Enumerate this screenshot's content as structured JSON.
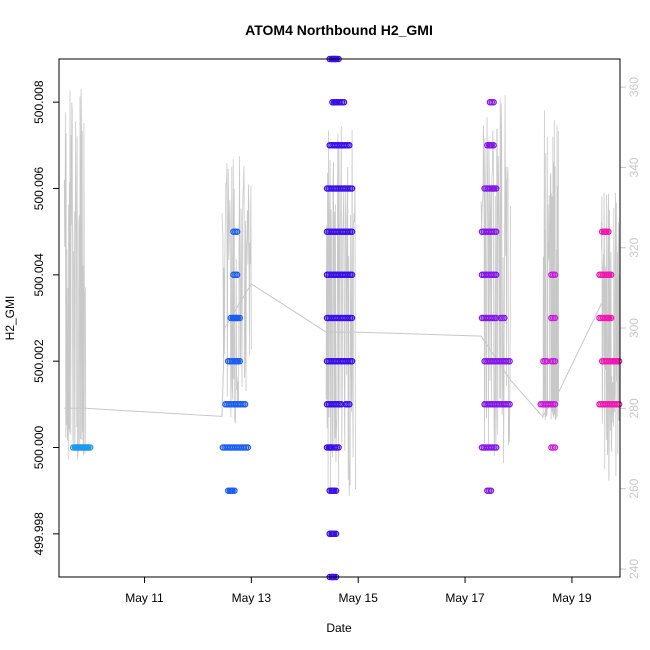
{
  "chart_data": {
    "type": "scatter",
    "title": "ATOM4 Northbound H2_GMI",
    "xlabel": "Date",
    "ylabel": "H2_GMI",
    "x_range_days": [
      9.4,
      19.9
    ],
    "ylim": [
      499.997,
      500.009
    ],
    "y2lim": [
      238,
      367
    ],
    "x_ticks": [
      {
        "day": 11,
        "label": "May 11"
      },
      {
        "day": 13,
        "label": "May 13"
      },
      {
        "day": 15,
        "label": "May 15"
      },
      {
        "day": 17,
        "label": "May 17"
      },
      {
        "day": 19,
        "label": "May 19"
      }
    ],
    "y_ticks": [
      {
        "value": 499.998,
        "label": "499.998"
      },
      {
        "value": 500.0,
        "label": "500.000"
      },
      {
        "value": 500.002,
        "label": "500.002"
      },
      {
        "value": 500.004,
        "label": "500.004"
      },
      {
        "value": 500.006,
        "label": "500.006"
      },
      {
        "value": 500.008,
        "label": "500.008"
      }
    ],
    "y2_ticks": [
      {
        "value": 240,
        "label": "240"
      },
      {
        "value": 260,
        "label": "260"
      },
      {
        "value": 280,
        "label": "280"
      },
      {
        "value": 300,
        "label": "300"
      },
      {
        "value": 320,
        "label": "320"
      },
      {
        "value": 340,
        "label": "340"
      },
      {
        "value": 360,
        "label": "360"
      }
    ],
    "colors": {
      "frame": "#000000",
      "secondary_axis": "#c8c8c8",
      "secondary_line": "#c8c8c8"
    },
    "series": [
      {
        "color": "#1e9be8",
        "points": [
          [
            9.7,
            500.0
          ],
          [
            9.75,
            500.0
          ],
          [
            9.8,
            500.0
          ],
          [
            9.85,
            500.0
          ],
          [
            9.9,
            500.0
          ],
          [
            9.95,
            500.0
          ]
        ]
      },
      {
        "color": "#1c5ef0",
        "points": [
          [
            12.5,
            500.0
          ],
          [
            12.6,
            500.0
          ],
          [
            12.7,
            500.0
          ],
          [
            12.8,
            500.0
          ],
          [
            12.9,
            500.0
          ],
          [
            12.55,
            500.001
          ],
          [
            12.65,
            500.001
          ],
          [
            12.75,
            500.001
          ],
          [
            12.85,
            500.001
          ],
          [
            12.6,
            500.002
          ],
          [
            12.7,
            500.002
          ],
          [
            12.75,
            500.002
          ],
          [
            12.65,
            500.003
          ],
          [
            12.7,
            500.003
          ],
          [
            12.75,
            500.003
          ],
          [
            12.7,
            500.004
          ],
          [
            12.7,
            500.005
          ],
          [
            12.6,
            499.999
          ],
          [
            12.65,
            499.999
          ]
        ]
      },
      {
        "color": "#3a10e8",
        "points": [
          [
            14.45,
            500.0
          ],
          [
            14.5,
            500.0
          ],
          [
            14.6,
            500.0
          ],
          [
            14.45,
            500.001
          ],
          [
            14.55,
            500.001
          ],
          [
            14.65,
            500.001
          ],
          [
            14.8,
            500.001
          ],
          [
            14.45,
            500.002
          ],
          [
            14.55,
            500.002
          ],
          [
            14.65,
            500.002
          ],
          [
            14.75,
            500.002
          ],
          [
            14.85,
            500.002
          ],
          [
            14.45,
            500.003
          ],
          [
            14.55,
            500.003
          ],
          [
            14.65,
            500.003
          ],
          [
            14.75,
            500.003
          ],
          [
            14.85,
            500.003
          ],
          [
            14.45,
            500.004
          ],
          [
            14.55,
            500.004
          ],
          [
            14.65,
            500.004
          ],
          [
            14.75,
            500.004
          ],
          [
            14.85,
            500.004
          ],
          [
            14.45,
            500.005
          ],
          [
            14.55,
            500.005
          ],
          [
            14.65,
            500.005
          ],
          [
            14.75,
            500.005
          ],
          [
            14.85,
            500.005
          ],
          [
            14.45,
            500.006
          ],
          [
            14.55,
            500.006
          ],
          [
            14.65,
            500.006
          ],
          [
            14.75,
            500.006
          ],
          [
            14.85,
            500.006
          ],
          [
            14.5,
            500.007
          ],
          [
            14.6,
            500.007
          ],
          [
            14.7,
            500.007
          ],
          [
            14.8,
            500.007
          ],
          [
            14.55,
            500.008
          ],
          [
            14.6,
            500.008
          ],
          [
            14.7,
            500.008
          ],
          [
            14.5,
            500.009
          ],
          [
            14.55,
            500.009
          ],
          [
            14.6,
            500.009
          ],
          [
            14.5,
            499.999
          ],
          [
            14.55,
            499.999
          ],
          [
            14.5,
            499.998
          ],
          [
            14.55,
            499.998
          ],
          [
            14.5,
            499.997
          ],
          [
            14.55,
            499.997
          ]
        ]
      },
      {
        "color": "#8418e8",
        "points": [
          [
            17.35,
            500.0
          ],
          [
            17.45,
            500.0
          ],
          [
            17.55,
            500.0
          ],
          [
            17.4,
            500.001
          ],
          [
            17.5,
            500.001
          ],
          [
            17.6,
            500.001
          ],
          [
            17.7,
            500.001
          ],
          [
            17.8,
            500.001
          ],
          [
            17.4,
            500.002
          ],
          [
            17.5,
            500.002
          ],
          [
            17.6,
            500.002
          ],
          [
            17.7,
            500.002
          ],
          [
            17.8,
            500.002
          ],
          [
            17.35,
            500.003
          ],
          [
            17.45,
            500.003
          ],
          [
            17.55,
            500.003
          ],
          [
            17.7,
            500.003
          ],
          [
            17.35,
            500.004
          ],
          [
            17.45,
            500.004
          ],
          [
            17.55,
            500.004
          ],
          [
            17.35,
            500.005
          ],
          [
            17.45,
            500.005
          ],
          [
            17.55,
            500.005
          ],
          [
            17.4,
            500.006
          ],
          [
            17.5,
            500.006
          ],
          [
            17.55,
            500.006
          ],
          [
            17.45,
            500.007
          ],
          [
            17.5,
            500.007
          ],
          [
            17.5,
            500.008
          ],
          [
            17.45,
            499.999
          ]
        ]
      },
      {
        "color": "#c81cd8",
        "points": [
          [
            18.45,
            500.001
          ],
          [
            18.55,
            500.001
          ],
          [
            18.65,
            500.001
          ],
          [
            18.5,
            500.002
          ],
          [
            18.65,
            500.002
          ],
          [
            18.65,
            500.003
          ],
          [
            18.65,
            500.004
          ],
          [
            18.65,
            500.0
          ]
        ]
      },
      {
        "color": "#f018b0",
        "points": [
          [
            19.55,
            500.001
          ],
          [
            19.65,
            500.001
          ],
          [
            19.75,
            500.001
          ],
          [
            19.85,
            500.001
          ],
          [
            19.6,
            500.002
          ],
          [
            19.7,
            500.002
          ],
          [
            19.8,
            500.002
          ],
          [
            19.85,
            500.002
          ],
          [
            19.55,
            500.003
          ],
          [
            19.65,
            500.003
          ],
          [
            19.7,
            500.003
          ],
          [
            19.55,
            500.004
          ],
          [
            19.65,
            500.004
          ],
          [
            19.7,
            500.004
          ],
          [
            19.6,
            500.005
          ],
          [
            19.65,
            500.005
          ]
        ]
      }
    ],
    "secondary_line_segments": [
      {
        "x_start": 9.5,
        "x_end": 9.9,
        "base": 279,
        "min": 267,
        "max": 360
      },
      {
        "x_start": 12.45,
        "x_end": 13.0,
        "base": 300,
        "min": 276,
        "max": 343
      },
      {
        "x_start": 14.4,
        "x_end": 14.95,
        "base": 300,
        "min": 258,
        "max": 351
      },
      {
        "x_start": 17.3,
        "x_end": 17.85,
        "base": 295,
        "min": 263,
        "max": 358
      },
      {
        "x_start": 18.45,
        "x_end": 18.75,
        "base": 283,
        "min": 277,
        "max": 358
      },
      {
        "x_start": 19.55,
        "x_end": 19.9,
        "base": 300,
        "min": 261,
        "max": 335
      }
    ],
    "secondary_line_path": [
      [
        9.5,
        280
      ],
      [
        9.9,
        280
      ],
      [
        12.45,
        278
      ],
      [
        12.5,
        300
      ],
      [
        13.0,
        311
      ],
      [
        14.4,
        299
      ],
      [
        14.95,
        299
      ],
      [
        17.3,
        298
      ],
      [
        17.85,
        287
      ],
      [
        18.45,
        278
      ],
      [
        18.75,
        284
      ],
      [
        19.55,
        306
      ],
      [
        19.9,
        300
      ]
    ]
  }
}
